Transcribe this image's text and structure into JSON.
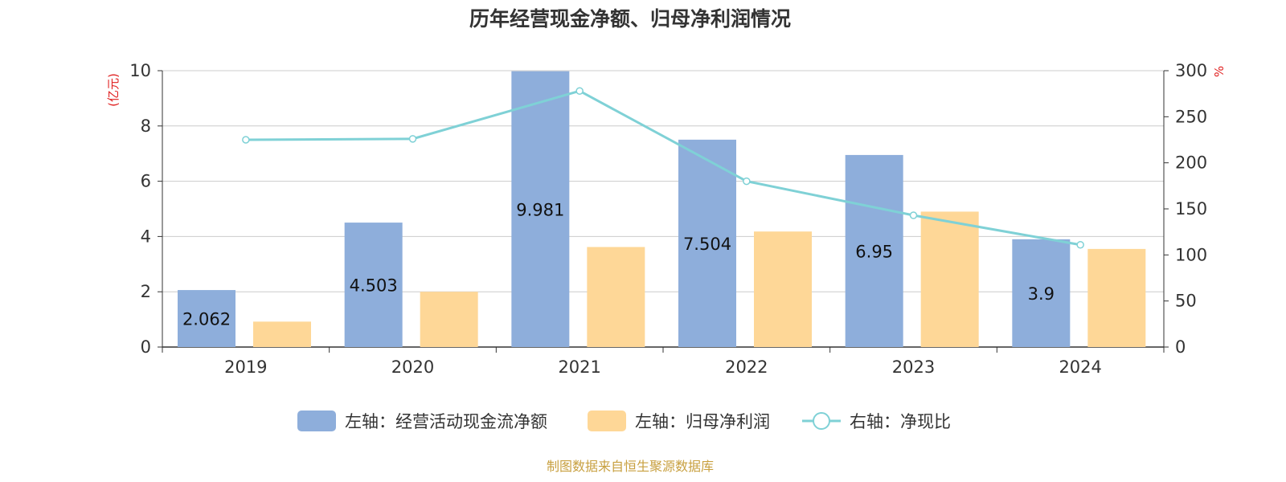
{
  "chart_data": {
    "type": "bar",
    "title": "历年经营现金净额、归母净利润情况",
    "categories": [
      "2019",
      "2020",
      "2021",
      "2022",
      "2023",
      "2024"
    ],
    "y_left": {
      "unit": "(亿元)",
      "ylim": [
        0,
        10
      ],
      "ticks": [
        "0",
        "2",
        "4",
        "6",
        "8",
        "10"
      ]
    },
    "y_right": {
      "unit": "%",
      "ylim": [
        0,
        300
      ],
      "ticks": [
        "0",
        "50",
        "100",
        "150",
        "200",
        "250",
        "300"
      ]
    },
    "series": [
      {
        "name": "左轴：经营活动现金流净额",
        "type": "bar",
        "axis": "left",
        "color": "#8eaedb",
        "values": [
          2.062,
          4.503,
          9.981,
          7.504,
          6.95,
          3.9
        ],
        "labels": [
          "2.062",
          "4.503",
          "9.981",
          "7.504",
          "6.95",
          "3.9"
        ]
      },
      {
        "name": "左轴：归母净利润",
        "type": "bar",
        "axis": "left",
        "color": "#fed797",
        "values": [
          0.92,
          2.0,
          3.62,
          4.18,
          4.9,
          3.55
        ]
      },
      {
        "name": "右轴：净现比",
        "type": "line",
        "axis": "right",
        "color": "#7fd1d6",
        "values": [
          225,
          226,
          278,
          180,
          143,
          111
        ]
      }
    ],
    "grid": true,
    "legend_position": "bottom"
  },
  "source_note": "制图数据来自恒生聚源数据库",
  "colors": {
    "axis_unit": "#e02020",
    "source": "#c8a040",
    "grid": "#cccccc",
    "axis": "#333333"
  }
}
